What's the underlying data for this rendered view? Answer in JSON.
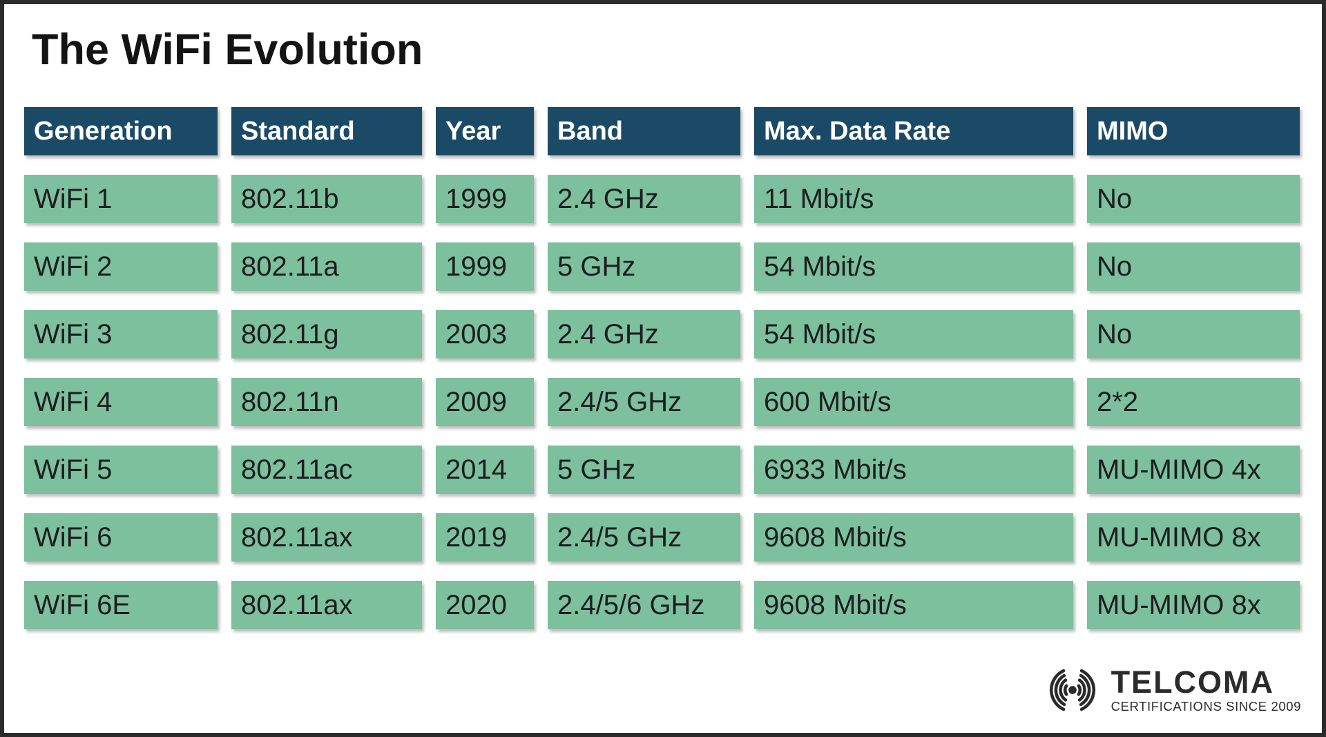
{
  "chart_data": {
    "type": "table",
    "title": "The WiFi Evolution",
    "columns": [
      "Generation",
      "Standard",
      "Year",
      "Band",
      "Max. Data Rate",
      "MIMO"
    ],
    "rows": [
      [
        "WiFi 1",
        "802.11b",
        "1999",
        "2.4 GHz",
        "11 Mbit/s",
        "No"
      ],
      [
        "WiFi 2",
        "802.11a",
        "1999",
        "5 GHz",
        "54 Mbit/s",
        "No"
      ],
      [
        "WiFi 3",
        "802.11g",
        "2003",
        "2.4 GHz",
        "54 Mbit/s",
        "No"
      ],
      [
        "WiFi 4",
        "802.11n",
        "2009",
        "2.4/5 GHz",
        "600 Mbit/s",
        "2*2"
      ],
      [
        "WiFi 5",
        "802.11ac",
        "2014",
        "5 GHz",
        "6933 Mbit/s",
        "MU-MIMO 4x"
      ],
      [
        "WiFi 6",
        "802.11ax",
        "2019",
        "2.4/5 GHz",
        "9608 Mbit/s",
        "MU-MIMO 8x"
      ],
      [
        "WiFi 6E",
        "802.11ax",
        "2020",
        "2.4/5/6 GHz",
        "9608 Mbit/s",
        "MU-MIMO 8x"
      ]
    ],
    "layout": {
      "header_position": "top",
      "grid": "off"
    }
  },
  "logo": {
    "brand": "TELCOMA",
    "tagline": "CERTIFICATIONS SINCE 2009",
    "icon": "radio-waves-icon"
  },
  "colors": {
    "header_bg": "#1b4a66",
    "cell_bg": "#7cc09e",
    "header_text": "#ffffff",
    "cell_text": "#1d1d1d",
    "title_text": "#141414",
    "logo_color": "#2b2b2b",
    "page_bg": "#ffffff",
    "frame_border": "#2b2b2b"
  }
}
